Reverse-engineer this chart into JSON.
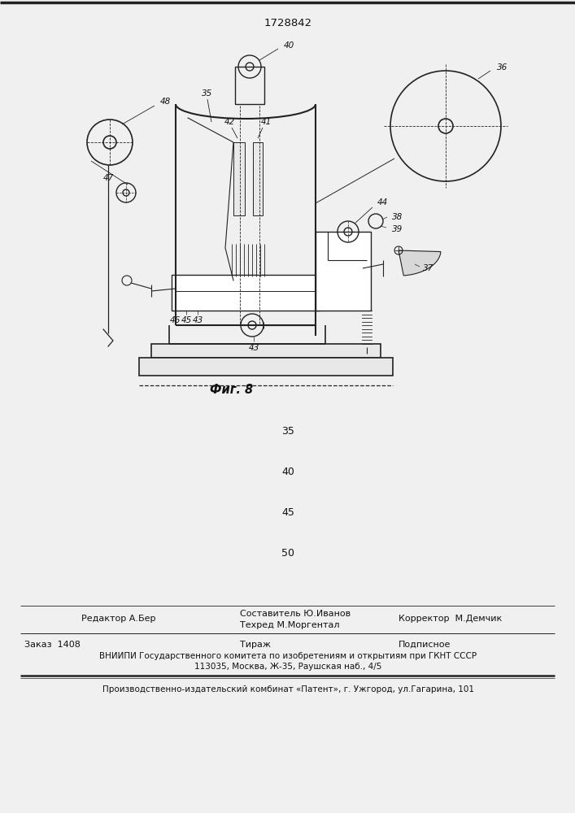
{
  "patent_number": "1728842",
  "fig_label": "Фиг. 8",
  "background_color": "#f0f0f0",
  "page_numbers": [
    "35",
    "40",
    "45",
    "50"
  ],
  "footer_line1_left": "Редактор А.Бер",
  "footer_line1_center": "Составитель Ю.Иванов",
  "footer_line2_center": "Техред М.Моргентал",
  "footer_line1_right": "Корректор  М.Демчик",
  "footer_zakaz": "Заказ  1408",
  "footer_tirazh": "Тираж",
  "footer_podpisnoe": "Подписное",
  "footer_vniiipi": "ВНИИПИ Государственного комитета по изобретениям и открытиям при ГКНТ СССР",
  "footer_address": "113035, Москва, Ж-35, Раушская наб., 4/5",
  "footer_patent": "Производственно-издательский комбинат «Патент», г. Ужгород, ул.Гагарина, 101"
}
